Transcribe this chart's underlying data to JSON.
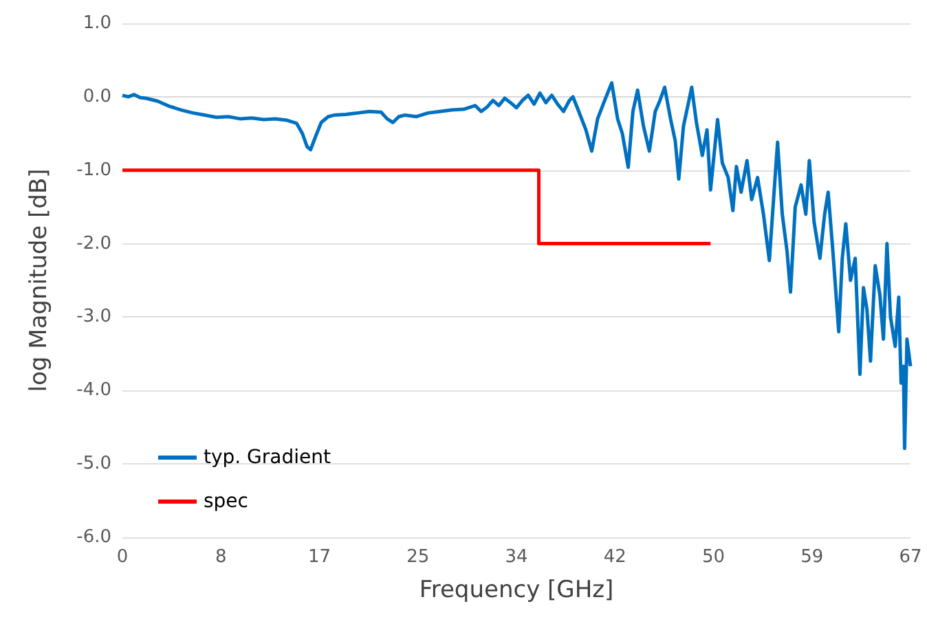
{
  "chart_data": {
    "type": "line",
    "xlabel": "Frequency [GHz]",
    "ylabel": "log Magnitude [dB]",
    "xlim": [
      0,
      67
    ],
    "xticks": [
      0,
      {
        "value": 8.375,
        "label": "8"
      },
      {
        "value": 16.75,
        "label": "17"
      },
      {
        "value": 25.125,
        "label": "25"
      },
      {
        "value": 33.5,
        "label": "34"
      },
      {
        "value": 41.875,
        "label": "42"
      },
      {
        "value": 50.25,
        "label": "50"
      },
      {
        "value": 58.625,
        "label": "59"
      },
      67
    ],
    "ylim": [
      -6,
      1
    ],
    "yticks": [
      {
        "value": -6,
        "label": "-6.0"
      },
      {
        "value": -5,
        "label": "-5.0"
      },
      {
        "value": -4,
        "label": "-4.0"
      },
      {
        "value": -3,
        "label": "-3.0"
      },
      {
        "value": -2,
        "label": "-2.0"
      },
      {
        "value": -1,
        "label": "-1.0"
      },
      {
        "value": 0,
        "label": "0.0"
      },
      {
        "value": 1,
        "label": "1.0"
      }
    ],
    "grid": "y",
    "legend": "bottom left",
    "marker": "none",
    "series": [
      {
        "name": "typ. Gradient",
        "color": "#0070c0",
        "x": [
          0,
          0.5,
          1,
          1.5,
          2,
          3,
          4,
          5,
          6,
          7,
          8,
          9,
          10,
          11,
          12,
          13,
          14,
          14.8,
          15.3,
          15.7,
          16,
          16.4,
          16.9,
          17.5,
          18,
          19,
          20,
          21,
          22,
          22.5,
          23,
          23.5,
          24,
          25,
          26,
          27,
          28,
          29,
          30,
          30.5,
          31,
          31.5,
          32,
          32.5,
          33,
          33.5,
          34,
          34.5,
          35,
          35.5,
          36,
          36.5,
          37,
          37.5,
          38,
          38.3,
          38.8,
          39.4,
          39.9,
          40.4,
          41,
          41.6,
          42.1,
          42.5,
          43,
          43.4,
          43.8,
          44.3,
          44.8,
          45.3,
          45.7,
          46.1,
          46.6,
          47,
          47.3,
          47.7,
          48.1,
          48.4,
          48.8,
          49.3,
          49.7,
          50,
          50.6,
          51,
          51.5,
          51.9,
          52.2,
          52.6,
          53.1,
          53.5,
          54,
          54.5,
          55,
          55.4,
          55.7,
          56.1,
          56.5,
          56.8,
          57.2,
          57.7,
          58.1,
          58.4,
          58.8,
          59.3,
          59.7,
          60,
          60.4,
          60.9,
          61.2,
          61.5,
          61.9,
          62.3,
          62.7,
          63,
          63.3,
          63.6,
          64,
          64.4,
          64.7,
          65,
          65.3,
          65.7,
          66,
          66.2,
          66.4,
          66.5,
          66.7,
          67
        ],
        "values": [
          0.02,
          0.0,
          0.03,
          -0.01,
          -0.02,
          -0.06,
          -0.13,
          -0.18,
          -0.22,
          -0.25,
          -0.28,
          -0.27,
          -0.3,
          -0.29,
          -0.31,
          -0.3,
          -0.32,
          -0.36,
          -0.5,
          -0.68,
          -0.72,
          -0.55,
          -0.35,
          -0.27,
          -0.25,
          -0.24,
          -0.22,
          -0.2,
          -0.21,
          -0.3,
          -0.35,
          -0.27,
          -0.25,
          -0.27,
          -0.22,
          -0.2,
          -0.18,
          -0.17,
          -0.12,
          -0.2,
          -0.14,
          -0.05,
          -0.12,
          -0.02,
          -0.08,
          -0.15,
          -0.05,
          0.02,
          -0.1,
          0.05,
          -0.08,
          0.02,
          -0.1,
          -0.2,
          -0.05,
          0.0,
          -0.2,
          -0.45,
          -0.74,
          -0.3,
          -0.05,
          0.19,
          -0.3,
          -0.5,
          -0.96,
          -0.2,
          0.09,
          -0.4,
          -0.74,
          -0.2,
          -0.05,
          0.13,
          -0.3,
          -0.6,
          -1.12,
          -0.4,
          -0.1,
          0.13,
          -0.35,
          -0.8,
          -0.45,
          -1.27,
          -0.31,
          -0.9,
          -1.1,
          -1.55,
          -0.95,
          -1.3,
          -0.87,
          -1.4,
          -1.1,
          -1.6,
          -2.23,
          -1.3,
          -0.62,
          -1.6,
          -2.1,
          -2.66,
          -1.5,
          -1.2,
          -1.6,
          -0.87,
          -1.7,
          -2.2,
          -1.6,
          -1.3,
          -2.1,
          -3.2,
          -2.2,
          -1.73,
          -2.5,
          -2.2,
          -3.78,
          -2.6,
          -2.9,
          -3.6,
          -2.3,
          -2.7,
          -3.3,
          -2.0,
          -3.0,
          -3.4,
          -2.73,
          -3.9,
          -3.67,
          -4.79,
          -3.3,
          -3.67
        ]
      },
      {
        "name": "spec",
        "color": "#ff0000",
        "type": "step",
        "x": [
          0,
          35.4,
          50
        ],
        "values": [
          -1,
          -2,
          -2
        ]
      }
    ]
  }
}
